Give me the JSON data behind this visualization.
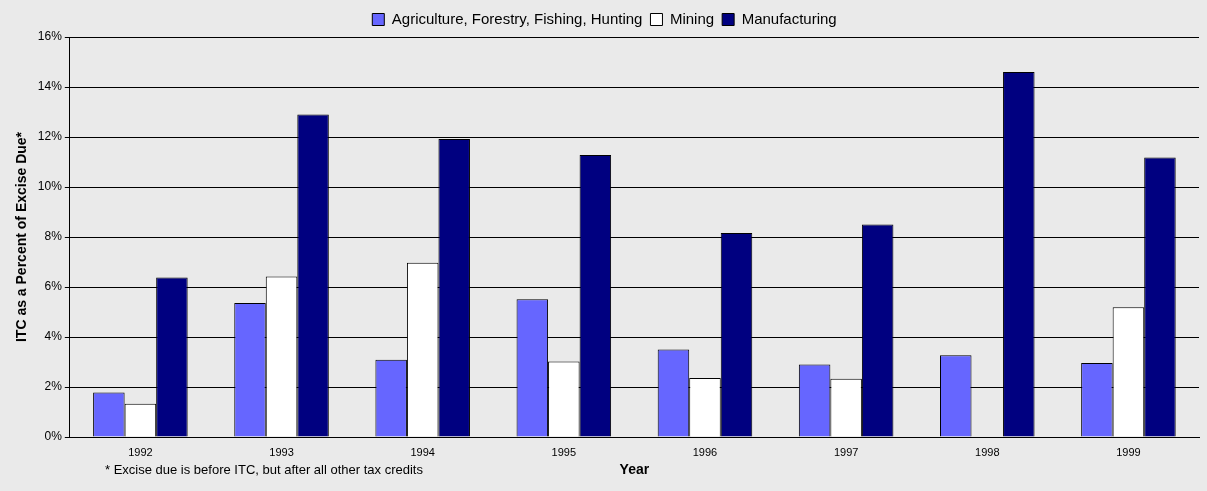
{
  "chart_data": {
    "type": "bar",
    "xlabel": "Year",
    "ylabel": "ITC as a Percent of Excise Due*",
    "categories": [
      "1992",
      "1993",
      "1994",
      "1995",
      "1996",
      "1997",
      "1998",
      "1999"
    ],
    "series": [
      {
        "name": "Agriculture, Forestry, Fishing, Hunting",
        "color": "#6666ff",
        "values": [
          1.78,
          5.36,
          3.09,
          5.51,
          3.5,
          2.9,
          3.27,
          2.96
        ]
      },
      {
        "name": "Mining",
        "color": "#ffffff",
        "values": [
          1.33,
          6.42,
          6.97,
          3.02,
          2.36,
          2.33,
          null,
          5.19
        ]
      },
      {
        "name": "Manufacturing",
        "color": "#000080",
        "values": [
          6.38,
          12.9,
          11.92,
          11.28,
          8.16,
          8.5,
          14.6,
          11.18
        ]
      }
    ],
    "ylim": [
      0,
      16
    ],
    "yticks": [
      {
        "value": 0,
        "label": "0%"
      },
      {
        "value": 2,
        "label": "2%"
      },
      {
        "value": 4,
        "label": "4%"
      },
      {
        "value": 6,
        "label": "6%"
      },
      {
        "value": 8,
        "label": "8%"
      },
      {
        "value": 10,
        "label": "10%"
      },
      {
        "value": 12,
        "label": "12%"
      },
      {
        "value": 14,
        "label": "14%"
      },
      {
        "value": 16,
        "label": "16%"
      }
    ],
    "grid": "y",
    "legend": "top",
    "annotations": [
      "* Excise due is before ITC, but after all other tax credits"
    ]
  }
}
